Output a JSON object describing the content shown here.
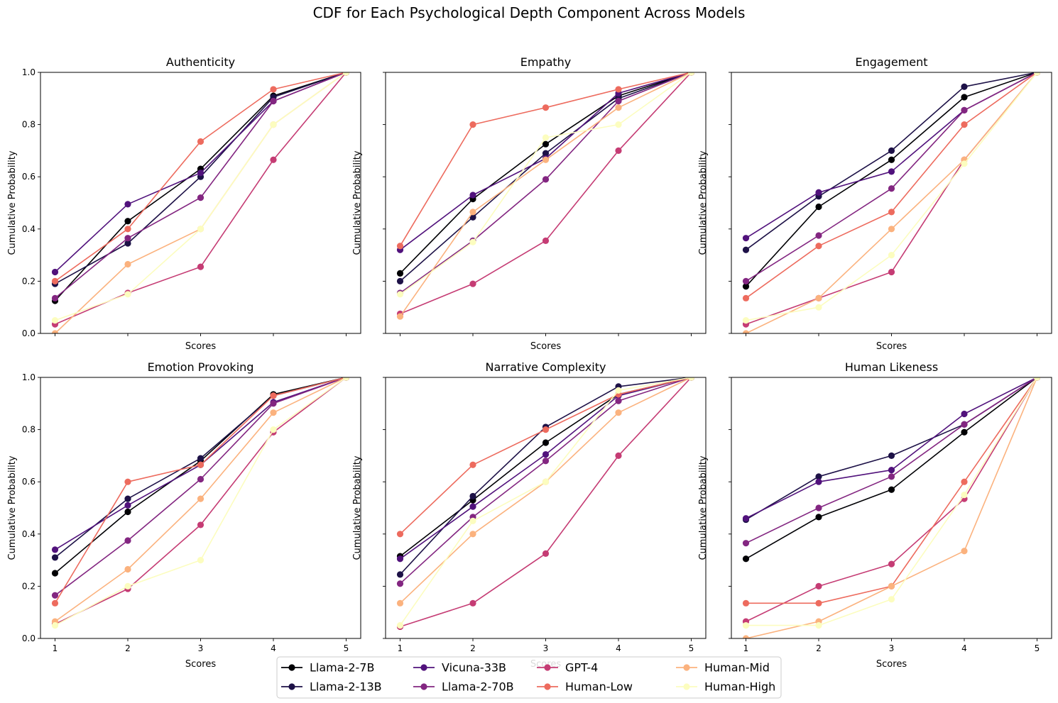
{
  "figure": {
    "title": "CDF for Each Psychological Depth Component Across Models"
  },
  "legend": {
    "placement": "bottom-center",
    "columns": 4
  },
  "chart_data": [
    {
      "type": "line",
      "title": "Authenticity",
      "xlabel": "Scores",
      "ylabel": "Cumulative Probability",
      "x": [
        1,
        2,
        3,
        4,
        5
      ],
      "xlim": [
        0.8,
        5.2
      ],
      "ylim": [
        0,
        1
      ],
      "xticks": [
        "1",
        "2",
        "3",
        "4",
        "5"
      ],
      "yticks": [
        "0.0",
        "0.2",
        "0.4",
        "0.6",
        "0.8",
        "1.0"
      ],
      "show_xticklabels": false,
      "show_yticklabels": true,
      "grid": false,
      "series": [
        {
          "name": "Llama-2-7B",
          "color": "#000004",
          "values": [
            0.125,
            0.43,
            0.63,
            0.91,
            1.0
          ]
        },
        {
          "name": "Llama-2-13B",
          "color": "#1d1147",
          "values": [
            0.19,
            0.345,
            0.6,
            0.905,
            1.0
          ]
        },
        {
          "name": "Vicuna-33B",
          "color": "#51127c",
          "values": [
            0.235,
            0.495,
            0.615,
            0.89,
            1.0
          ]
        },
        {
          "name": "Llama-2-70B",
          "color": "#832681",
          "values": [
            0.135,
            0.365,
            0.52,
            0.89,
            1.0
          ]
        },
        {
          "name": "GPT-4",
          "color": "#c53c74",
          "values": [
            0.035,
            0.155,
            0.255,
            0.665,
            1.0
          ]
        },
        {
          "name": "Human-Low",
          "color": "#ed6b5e",
          "values": [
            0.2,
            0.4,
            0.735,
            0.935,
            1.0
          ]
        },
        {
          "name": "Human-Mid",
          "color": "#fbb27e",
          "values": [
            0.0,
            0.265,
            0.4,
            0.8,
            1.0
          ]
        },
        {
          "name": "Human-High",
          "color": "#fcfdbf",
          "values": [
            0.05,
            0.15,
            0.4,
            0.8,
            1.0
          ]
        }
      ]
    },
    {
      "type": "line",
      "title": "Empathy",
      "xlabel": "Scores",
      "ylabel": "Cumulative Probability",
      "x": [
        1,
        2,
        3,
        4,
        5
      ],
      "xlim": [
        0.8,
        5.2
      ],
      "ylim": [
        0,
        1
      ],
      "xticks": [
        "1",
        "2",
        "3",
        "4",
        "5"
      ],
      "yticks": [
        "0.0",
        "0.2",
        "0.4",
        "0.6",
        "0.8",
        "1.0"
      ],
      "show_xticklabels": false,
      "show_yticklabels": false,
      "grid": false,
      "series": [
        {
          "name": "Llama-2-7B",
          "color": "#000004",
          "values": [
            0.23,
            0.515,
            0.725,
            0.91,
            1.0
          ]
        },
        {
          "name": "Llama-2-13B",
          "color": "#1d1147",
          "values": [
            0.2,
            0.445,
            0.69,
            0.9,
            1.0
          ]
        },
        {
          "name": "Vicuna-33B",
          "color": "#51127c",
          "values": [
            0.32,
            0.53,
            0.67,
            0.92,
            1.0
          ]
        },
        {
          "name": "Llama-2-70B",
          "color": "#832681",
          "values": [
            0.155,
            0.355,
            0.59,
            0.89,
            1.0
          ]
        },
        {
          "name": "GPT-4",
          "color": "#c53c74",
          "values": [
            0.075,
            0.19,
            0.355,
            0.7,
            1.0
          ]
        },
        {
          "name": "Human-Low",
          "color": "#ed6b5e",
          "values": [
            0.335,
            0.8,
            0.865,
            0.935,
            1.0
          ]
        },
        {
          "name": "Human-Mid",
          "color": "#fbb27e",
          "values": [
            0.065,
            0.465,
            0.665,
            0.865,
            1.0
          ]
        },
        {
          "name": "Human-High",
          "color": "#fcfdbf",
          "values": [
            0.15,
            0.35,
            0.75,
            0.8,
            1.0
          ]
        }
      ]
    },
    {
      "type": "line",
      "title": "Engagement",
      "xlabel": "Scores",
      "ylabel": "Cumulative Probability",
      "x": [
        1,
        2,
        3,
        4,
        5
      ],
      "xlim": [
        0.8,
        5.2
      ],
      "ylim": [
        0,
        1
      ],
      "xticks": [
        "1",
        "2",
        "3",
        "4",
        "5"
      ],
      "yticks": [
        "0.0",
        "0.2",
        "0.4",
        "0.6",
        "0.8",
        "1.0"
      ],
      "show_xticklabels": false,
      "show_yticklabels": false,
      "grid": false,
      "series": [
        {
          "name": "Llama-2-7B",
          "color": "#000004",
          "values": [
            0.18,
            0.485,
            0.665,
            0.905,
            1.0
          ]
        },
        {
          "name": "Llama-2-13B",
          "color": "#1d1147",
          "values": [
            0.32,
            0.525,
            0.7,
            0.945,
            1.0
          ]
        },
        {
          "name": "Vicuna-33B",
          "color": "#51127c",
          "values": [
            0.365,
            0.54,
            0.62,
            0.855,
            1.0
          ]
        },
        {
          "name": "Llama-2-70B",
          "color": "#832681",
          "values": [
            0.2,
            0.375,
            0.555,
            0.855,
            1.0
          ]
        },
        {
          "name": "GPT-4",
          "color": "#c53c74",
          "values": [
            0.035,
            0.135,
            0.235,
            0.665,
            1.0
          ]
        },
        {
          "name": "Human-Low",
          "color": "#ed6b5e",
          "values": [
            0.135,
            0.335,
            0.465,
            0.8,
            1.0
          ]
        },
        {
          "name": "Human-Mid",
          "color": "#fbb27e",
          "values": [
            0.0,
            0.135,
            0.4,
            0.665,
            1.0
          ]
        },
        {
          "name": "Human-High",
          "color": "#fcfdbf",
          "values": [
            0.05,
            0.1,
            0.3,
            0.65,
            1.0
          ]
        }
      ]
    },
    {
      "type": "line",
      "title": "Emotion Provoking",
      "xlabel": "Scores",
      "ylabel": "Cumulative Probability",
      "x": [
        1,
        2,
        3,
        4,
        5
      ],
      "xlim": [
        0.8,
        5.2
      ],
      "ylim": [
        0,
        1
      ],
      "xticks": [
        "1",
        "2",
        "3",
        "4",
        "5"
      ],
      "yticks": [
        "0.0",
        "0.2",
        "0.4",
        "0.6",
        "0.8",
        "1.0"
      ],
      "show_xticklabels": true,
      "show_yticklabels": true,
      "grid": false,
      "series": [
        {
          "name": "Llama-2-7B",
          "color": "#000004",
          "values": [
            0.25,
            0.485,
            0.68,
            0.935,
            1.0
          ]
        },
        {
          "name": "Llama-2-13B",
          "color": "#1d1147",
          "values": [
            0.31,
            0.535,
            0.69,
            0.93,
            1.0
          ]
        },
        {
          "name": "Vicuna-33B",
          "color": "#51127c",
          "values": [
            0.34,
            0.51,
            0.665,
            0.905,
            1.0
          ]
        },
        {
          "name": "Llama-2-70B",
          "color": "#832681",
          "values": [
            0.165,
            0.375,
            0.61,
            0.9,
            1.0
          ]
        },
        {
          "name": "GPT-4",
          "color": "#c53c74",
          "values": [
            0.055,
            0.19,
            0.435,
            0.79,
            1.0
          ]
        },
        {
          "name": "Human-Low",
          "color": "#ed6b5e",
          "values": [
            0.135,
            0.6,
            0.665,
            0.93,
            1.0
          ]
        },
        {
          "name": "Human-Mid",
          "color": "#fbb27e",
          "values": [
            0.065,
            0.265,
            0.535,
            0.865,
            1.0
          ]
        },
        {
          "name": "Human-High",
          "color": "#fcfdbf",
          "values": [
            0.05,
            0.2,
            0.3,
            0.8,
            1.0
          ]
        }
      ]
    },
    {
      "type": "line",
      "title": "Narrative Complexity",
      "xlabel": "Scores",
      "ylabel": "Cumulative Probability",
      "x": [
        1,
        2,
        3,
        4,
        5
      ],
      "xlim": [
        0.8,
        5.2
      ],
      "ylim": [
        0,
        1
      ],
      "xticks": [
        "1",
        "2",
        "3",
        "4",
        "5"
      ],
      "yticks": [
        "0.0",
        "0.2",
        "0.4",
        "0.6",
        "0.8",
        "1.0"
      ],
      "show_xticklabels": true,
      "show_yticklabels": false,
      "grid": false,
      "series": [
        {
          "name": "Llama-2-7B",
          "color": "#000004",
          "values": [
            0.315,
            0.53,
            0.75,
            0.935,
            1.0
          ]
        },
        {
          "name": "Llama-2-13B",
          "color": "#1d1147",
          "values": [
            0.245,
            0.545,
            0.81,
            0.965,
            1.0
          ]
        },
        {
          "name": "Vicuna-33B",
          "color": "#51127c",
          "values": [
            0.305,
            0.505,
            0.705,
            0.93,
            1.0
          ]
        },
        {
          "name": "Llama-2-70B",
          "color": "#832681",
          "values": [
            0.21,
            0.465,
            0.68,
            0.91,
            1.0
          ]
        },
        {
          "name": "GPT-4",
          "color": "#c53c74",
          "values": [
            0.045,
            0.135,
            0.325,
            0.7,
            1.0
          ]
        },
        {
          "name": "Human-Low",
          "color": "#ed6b5e",
          "values": [
            0.4,
            0.665,
            0.8,
            0.935,
            1.0
          ]
        },
        {
          "name": "Human-Mid",
          "color": "#fbb27e",
          "values": [
            0.135,
            0.4,
            0.6,
            0.865,
            1.0
          ]
        },
        {
          "name": "Human-High",
          "color": "#fcfdbf",
          "values": [
            0.05,
            0.45,
            0.6,
            0.95,
            1.0
          ]
        }
      ]
    },
    {
      "type": "line",
      "title": "Human Likeness",
      "xlabel": "Scores",
      "ylabel": "Cumulative Probability",
      "x": [
        1,
        2,
        3,
        4,
        5
      ],
      "xlim": [
        0.8,
        5.2
      ],
      "ylim": [
        0,
        1
      ],
      "xticks": [
        "1",
        "2",
        "3",
        "4",
        "5"
      ],
      "yticks": [
        "0.0",
        "0.2",
        "0.4",
        "0.6",
        "0.8",
        "1.0"
      ],
      "show_xticklabels": true,
      "show_yticklabels": false,
      "grid": false,
      "series": [
        {
          "name": "Llama-2-7B",
          "color": "#000004",
          "values": [
            0.305,
            0.465,
            0.57,
            0.79,
            1.0
          ]
        },
        {
          "name": "Llama-2-13B",
          "color": "#1d1147",
          "values": [
            0.455,
            0.62,
            0.7,
            0.82,
            1.0
          ]
        },
        {
          "name": "Vicuna-33B",
          "color": "#51127c",
          "values": [
            0.46,
            0.6,
            0.645,
            0.86,
            1.0
          ]
        },
        {
          "name": "Llama-2-70B",
          "color": "#832681",
          "values": [
            0.365,
            0.5,
            0.62,
            0.82,
            1.0
          ]
        },
        {
          "name": "GPT-4",
          "color": "#c53c74",
          "values": [
            0.065,
            0.2,
            0.285,
            0.535,
            1.0
          ]
        },
        {
          "name": "Human-Low",
          "color": "#ed6b5e",
          "values": [
            0.135,
            0.135,
            0.2,
            0.6,
            1.0
          ]
        },
        {
          "name": "Human-Mid",
          "color": "#fbb27e",
          "values": [
            0.0,
            0.065,
            0.2,
            0.335,
            1.0
          ]
        },
        {
          "name": "Human-High",
          "color": "#fcfdbf",
          "values": [
            0.05,
            0.05,
            0.15,
            0.55,
            1.0
          ]
        }
      ]
    }
  ]
}
